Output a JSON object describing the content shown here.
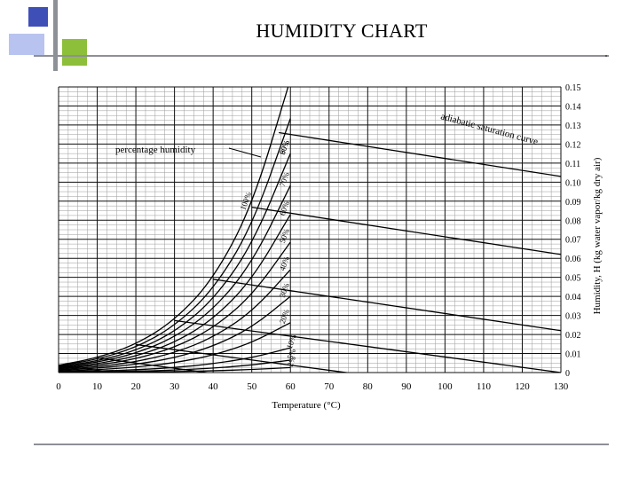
{
  "slide": {
    "title": "HUMIDITY CHART"
  },
  "chart_data": {
    "type": "line",
    "title": "",
    "xlabel": "Temperature (°C)",
    "ylabel": "Humidity, H (kg water vapor/kg dry air)",
    "xlim": [
      0,
      130
    ],
    "ylim": [
      0,
      0.15
    ],
    "x_ticks": [
      0,
      10,
      20,
      30,
      40,
      50,
      60,
      70,
      80,
      90,
      100,
      110,
      120,
      130
    ],
    "x_tick_labels": [
      "0",
      "10",
      "20",
      "30",
      "40",
      "50",
      "60",
      "70",
      "80",
      "90",
      "100",
      "110",
      "120",
      "130"
    ],
    "y_ticks": [
      0,
      0.01,
      0.02,
      0.03,
      0.04,
      0.05,
      0.06,
      0.07,
      0.08,
      0.09,
      0.1,
      0.11,
      0.12,
      0.13,
      0.14,
      0.15
    ],
    "y_tick_labels": [
      "0",
      "0.01",
      "0.02",
      "0.03",
      "0.04",
      "0.05",
      "0.06",
      "0.07",
      "0.08",
      "0.09",
      "0.10",
      "0.11",
      "0.12",
      "0.13",
      "0.14",
      "0.15"
    ],
    "grid": true,
    "series": [
      {
        "name": "100%",
        "values": [
          0.0038,
          0.0077,
          0.0147,
          0.0273,
          0.049,
          0.0868,
          0.154
        ]
      },
      {
        "name": "90%",
        "values": [
          0.0034,
          0.0069,
          0.0131,
          0.0243,
          0.0434,
          0.0764,
          0.1334
        ]
      },
      {
        "name": "80%",
        "values": [
          0.003,
          0.006,
          0.0115,
          0.0212,
          0.038,
          0.0665,
          0.115
        ]
      },
      {
        "name": "70%",
        "values": [
          0.0026,
          0.0053,
          0.01,
          0.0184,
          0.0328,
          0.0572,
          0.0982
        ]
      },
      {
        "name": "60%",
        "values": [
          0.0022,
          0.0045,
          0.0085,
          0.0156,
          0.0279,
          0.0486,
          0.083
        ]
      },
      {
        "name": "50%",
        "values": [
          0.0019,
          0.0038,
          0.0071,
          0.0131,
          0.0232,
          0.0403,
          0.0685
        ]
      },
      {
        "name": "40%",
        "values": [
          0.0015,
          0.003,
          0.0056,
          0.0103,
          0.0184,
          0.0318,
          0.054
        ]
      },
      {
        "name": "30%",
        "values": [
          0.0011,
          0.0023,
          0.0042,
          0.0077,
          0.0137,
          0.0236,
          0.04
        ]
      },
      {
        "name": "20%",
        "values": [
          0.0007,
          0.0015,
          0.0028,
          0.0051,
          0.0091,
          0.0156,
          0.0262
        ]
      },
      {
        "name": "10%",
        "values": [
          0.0004,
          0.0008,
          0.0014,
          0.0026,
          0.0046,
          0.0078,
          0.013
        ]
      },
      {
        "name": "5%",
        "values": [
          0.0002,
          0.0004,
          0.0007,
          0.0013,
          0.0023,
          0.0039,
          0.0065
        ]
      },
      {
        "name": "2%",
        "values": [
          0.0001,
          0.0002,
          0.0003,
          0.0005,
          0.0009,
          0.0016,
          0.0026
        ]
      }
    ],
    "x": [
      0,
      10,
      20,
      30,
      40,
      50,
      60
    ],
    "adiabatic_saturation_lines": [
      {
        "x": [
          0,
          130
        ],
        "y": [
          0.0038,
          -0.03
        ]
      },
      {
        "x": [
          10,
          130
        ],
        "y": [
          0.0077,
          -0.025
        ]
      },
      {
        "x": [
          20,
          130
        ],
        "y": [
          0.0147,
          -0.015
        ]
      },
      {
        "x": [
          30,
          130
        ],
        "y": [
          0.0273,
          0.0
        ]
      },
      {
        "x": [
          40,
          130
        ],
        "y": [
          0.049,
          0.022
        ]
      },
      {
        "x": [
          50,
          130
        ],
        "y": [
          0.0868,
          0.062
        ]
      },
      {
        "x": [
          57,
          130
        ],
        "y": [
          0.126,
          0.103
        ]
      }
    ],
    "annotations": [
      "percentage humidity",
      "adiabatic saturation curve"
    ]
  }
}
